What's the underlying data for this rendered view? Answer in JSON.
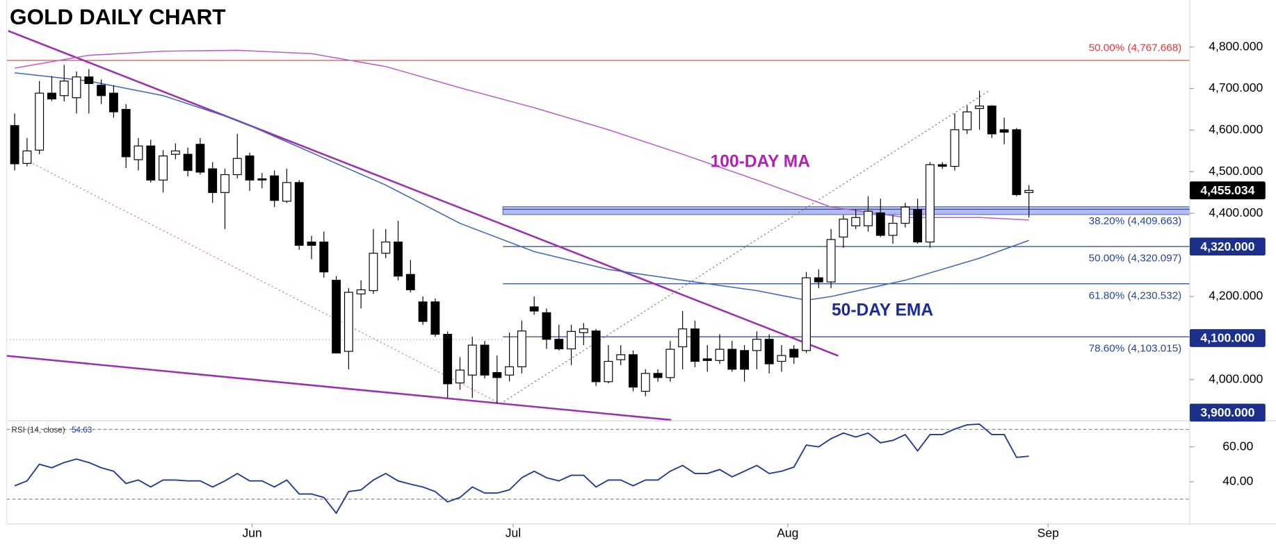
{
  "chart_data": {
    "type": "candlestick",
    "title": "GOLD DAILY CHART",
    "open": [
      4611,
      4520,
      4552,
      4689,
      4683,
      4678,
      4728,
      4708,
      4689,
      4650,
      4529,
      4562,
      4480,
      4542,
      4542,
      4566,
      4507,
      4450,
      4493,
      4538,
      4483,
      4490,
      4429,
      4474,
      4331,
      4331,
      4239,
      4068,
      4206,
      4214,
      4304,
      4331,
      4253,
      4187,
      4187,
      4109,
      3992,
      4011,
      4083,
      4017,
      4011,
      4031,
      4175,
      4161,
      4097,
      4074,
      4113,
      4117,
      3995,
      4048,
      4060,
      3972,
      4015,
      4005,
      4079,
      4122,
      4050,
      4046,
      4073,
      4070,
      4070,
      4097,
      4044,
      4073,
      4070,
      4245,
      4235,
      4343,
      4370,
      4370,
      4401,
      4347,
      4376,
      4409,
      4331,
      4517,
      4513,
      4601,
      4652,
      4658,
      4601,
      4601,
      4450
    ],
    "high": [
      4640,
      4581,
      4718,
      4730,
      4757,
      4741,
      4747,
      4722,
      4708,
      4663,
      4581,
      4577,
      4552,
      4568,
      4558,
      4581,
      4523,
      4507,
      4591,
      4546,
      4497,
      4503,
      4507,
      4480,
      4346,
      4356,
      4249,
      4220,
      4239,
      4362,
      4362,
      4382,
      4288,
      4200,
      4195,
      4116,
      4054,
      4103,
      4093,
      4058,
      4113,
      4142,
      4200,
      4171,
      4132,
      4132,
      4136,
      4122,
      4083,
      4083,
      4070,
      4025,
      4025,
      4093,
      4165,
      4142,
      4083,
      4109,
      4093,
      4083,
      4116,
      4109,
      4083,
      4083,
      4259,
      4265,
      4362,
      4396,
      4409,
      4441,
      4435,
      4396,
      4425,
      4435,
      4523,
      4523,
      4640,
      4659,
      4695,
      4660,
      4630,
      4605,
      4468
    ],
    "low": [
      4503,
      4513,
      4542,
      4670,
      4669,
      4640,
      4640,
      4663,
      4630,
      4509,
      4503,
      4474,
      4450,
      4530,
      4489,
      4493,
      4425,
      4362,
      4484,
      4454,
      4460,
      4415,
      4425,
      4312,
      4290,
      4245,
      4064,
      4025,
      4171,
      4206,
      4292,
      4239,
      4210,
      4132,
      4103,
      3956,
      3976,
      3956,
      4003,
      3943,
      3996,
      4015,
      4156,
      4074,
      4070,
      4035,
      4083,
      3985,
      3991,
      4035,
      3972,
      3960,
      3995,
      3995,
      4025,
      4030,
      4019,
      4038,
      4019,
      3995,
      4025,
      4015,
      4019,
      4038,
      4064,
      4220,
      4220,
      4317,
      4362,
      4356,
      4343,
      4327,
      4366,
      4327,
      4317,
      4507,
      4503,
      4591,
      4601,
      4581,
      4566,
      4441,
      4390
    ],
    "close": [
      4519,
      4550,
      4689,
      4675,
      4718,
      4728,
      4712,
      4683,
      4644,
      4536,
      4562,
      4480,
      4538,
      4550,
      4503,
      4499,
      4450,
      4493,
      4532,
      4480,
      4480,
      4431,
      4474,
      4323,
      4323,
      4259,
      4064,
      4210,
      4216,
      4304,
      4331,
      4249,
      4216,
      4140,
      4109,
      3990,
      4023,
      4083,
      4011,
      4005,
      4031,
      4117,
      4165,
      4097,
      4074,
      4116,
      4122,
      3995,
      4044,
      4060,
      3982,
      4015,
      4005,
      4073,
      4122,
      4044,
      4046,
      4073,
      4025,
      4025,
      4097,
      4038,
      4058,
      4054,
      4245,
      4235,
      4337,
      4386,
      4390,
      4405,
      4347,
      4376,
      4415,
      4331,
      4517,
      4513,
      4601,
      4644,
      4658,
      4591,
      4595,
      4445,
      4455
    ],
    "up_color": "#ffffff",
    "down_color": "#000000",
    "xlim": [
      -0.66,
      95
    ],
    "xticks": [
      {
        "value": 19.2,
        "label": "Jun"
      },
      {
        "value": 40.3,
        "label": "Jul"
      },
      {
        "value": 62.5,
        "label": "Aug"
      },
      {
        "value": 83.55,
        "label": "Sep"
      }
    ],
    "ylim": [
      3903,
      4913
    ],
    "yticks": [
      {
        "value": 4800,
        "label": "4,800.000"
      },
      {
        "value": 4700,
        "label": "4,700.000"
      },
      {
        "value": 4600,
        "label": "4,600.000"
      },
      {
        "value": 4500,
        "label": "4,500.000"
      },
      {
        "value": 4400,
        "label": "4,400.000"
      },
      {
        "value": 4200,
        "label": "4,200.000"
      },
      {
        "value": 4000,
        "label": "4,000.000"
      }
    ],
    "series": [
      {
        "name": "100-DAY MA",
        "color": "#b65fc6",
        "x": [
          0,
          6,
          12,
          18,
          24,
          30,
          36,
          42,
          48,
          54,
          60,
          66,
          72,
          78,
          82
        ],
        "values": [
          4749,
          4780,
          4790,
          4792,
          4784,
          4753,
          4702,
          4654,
          4601,
          4542,
          4480,
          4415,
          4390,
          4390,
          4384
        ]
      },
      {
        "name": "50-DAY EMA",
        "color": "#3f66b5",
        "x": [
          0,
          6,
          12,
          18,
          24,
          30,
          36,
          42,
          48,
          54,
          60,
          64,
          66,
          72,
          78,
          82
        ],
        "values": [
          4738,
          4718,
          4683,
          4624,
          4546,
          4468,
          4376,
          4308,
          4265,
          4239,
          4214,
          4191,
          4200,
          4239,
          4292,
          4335
        ]
      }
    ],
    "band": {
      "low": 4397,
      "high": 4416,
      "color": "#9aa6ec"
    },
    "fib_levels": [
      {
        "value": 4767.668,
        "label": "50.00% (4,767.668)",
        "color": "#e0393e"
      },
      {
        "value": 4409.663,
        "label": "38.20% (4,409.663)",
        "color": "#24479a"
      },
      {
        "value": 4320.097,
        "label": "50.00% (4,320.097)",
        "color": "#24479a"
      },
      {
        "value": 4230.532,
        "label": "61.80% (4,230.532)",
        "color": "#24479a"
      },
      {
        "value": 4103.015,
        "label": "78.60% (4,103.015)",
        "color": "#24479a"
      }
    ],
    "price_tags": [
      {
        "value": 4455.034,
        "label": "4,455.034",
        "color": "#000000"
      },
      {
        "value": 4320,
        "label": "4,320.000",
        "color": "#1c2f8a"
      },
      {
        "value": 4100,
        "label": "4,100.000",
        "color": "#1c2f8a"
      },
      {
        "value": 3900,
        "label": "3,900.000",
        "color": "#1c2f8a"
      }
    ],
    "rsi": {
      "name": "RSI (14, close)",
      "color": "#1f3a93",
      "values": [
        37.7,
        40.5,
        50,
        48,
        51,
        53,
        51,
        48,
        46,
        39,
        41,
        37,
        41,
        41,
        40.5,
        40.5,
        37,
        40.5,
        44.7,
        40.5,
        40.5,
        37,
        41,
        33,
        33,
        31,
        22,
        34.4,
        35.3,
        41,
        44.7,
        40.5,
        38.6,
        37,
        34.4,
        28.4,
        31,
        37,
        33.5,
        33.5,
        35.3,
        42.3,
        46,
        42.3,
        40.5,
        43.7,
        43.7,
        37,
        41,
        41,
        37.7,
        41,
        41,
        46,
        49.3,
        44.7,
        44.7,
        47,
        42.8,
        46,
        49.3,
        44.7,
        46,
        48.4,
        61,
        60,
        64.7,
        67.9,
        65.6,
        67.9,
        62.3,
        63.7,
        67,
        57.7,
        67,
        67,
        70.2,
        72.6,
        73,
        67,
        67,
        54,
        54.63
      ],
      "ylim": [
        15.8,
        74
      ],
      "yticks": [
        {
          "value": 60,
          "label": "60.00"
        },
        {
          "value": 40,
          "label": "40.00"
        }
      ],
      "levels": [
        70,
        30
      ]
    }
  }
}
